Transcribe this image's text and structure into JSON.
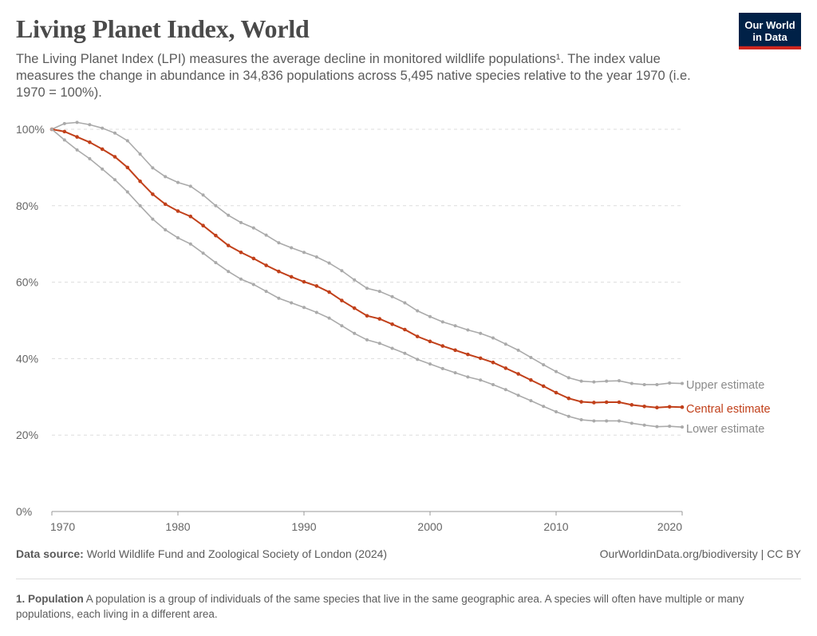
{
  "header": {
    "title": "Living Planet Index, World",
    "subtitle": "The Living Planet Index (LPI) measures the average decline in monitored wildlife populations¹. The index value measures the change in abundance in 34,836 populations across 5,495 native species relative to the year 1970 (i.e. 1970 = 100%).",
    "logo": "Our World in Data"
  },
  "footer": {
    "source_label": "Data source:",
    "source": "World Wildlife Fund and Zoological Society of London (2024)",
    "url": "OurWorldinData.org/biodiversity | CC BY",
    "note_label": "1. Population",
    "note": "A population is a group of individuals of the same species that live in the same geographic area. A species will often have multiple or many populations, each living in a different area."
  },
  "chart_data": {
    "type": "line",
    "x": [
      1970,
      1971,
      1972,
      1973,
      1974,
      1975,
      1976,
      1977,
      1978,
      1979,
      1980,
      1981,
      1982,
      1983,
      1984,
      1985,
      1986,
      1987,
      1988,
      1989,
      1990,
      1991,
      1992,
      1993,
      1994,
      1995,
      1996,
      1997,
      1998,
      1999,
      2000,
      2001,
      2002,
      2003,
      2004,
      2005,
      2006,
      2007,
      2008,
      2009,
      2010,
      2011,
      2012,
      2013,
      2014,
      2015,
      2016,
      2017,
      2018,
      2019,
      2020
    ],
    "series": [
      {
        "name": "Upper estimate",
        "color": "#aaaaaa",
        "values": [
          100,
          101.5,
          101.8,
          101.2,
          100.3,
          99,
          97,
          93.5,
          89.9,
          87.6,
          86.1,
          85.1,
          82.8,
          80,
          77.5,
          75.6,
          74.2,
          72.3,
          70.3,
          69,
          67.8,
          66.6,
          65,
          63,
          60.6,
          58.4,
          57.6,
          56.2,
          54.6,
          52.5,
          51,
          49.6,
          48.6,
          47.5,
          46.6,
          45.4,
          43.8,
          42.2,
          40.3,
          38.4,
          36.6,
          35,
          34.1,
          33.9,
          34.1,
          34.2,
          33.5,
          33.2,
          33.2,
          33.6,
          33.5
        ]
      },
      {
        "name": "Central estimate",
        "color": "#c1401a",
        "values": [
          100,
          99.4,
          98,
          96.6,
          94.8,
          92.8,
          90,
          86.4,
          83,
          80.4,
          78.6,
          77.2,
          74.8,
          72.2,
          69.6,
          67.8,
          66.2,
          64.4,
          62.8,
          61.4,
          60.1,
          59,
          57.4,
          55.2,
          53.2,
          51.2,
          50.4,
          49,
          47.6,
          45.8,
          44.5,
          43.3,
          42.2,
          41.1,
          40.1,
          39,
          37.5,
          36,
          34.4,
          32.8,
          31.1,
          29.6,
          28.7,
          28.5,
          28.6,
          28.6,
          27.9,
          27.5,
          27.2,
          27.4,
          27.3
        ]
      },
      {
        "name": "Lower estimate",
        "color": "#aaaaaa",
        "values": [
          100,
          97.2,
          94.6,
          92.3,
          89.6,
          86.8,
          83.6,
          80,
          76.5,
          73.7,
          71.6,
          70,
          67.6,
          65.1,
          62.8,
          60.8,
          59.4,
          57.6,
          55.8,
          54.6,
          53.4,
          52.1,
          50.6,
          48.6,
          46.6,
          44.9,
          44,
          42.7,
          41.4,
          39.8,
          38.6,
          37.4,
          36.3,
          35.2,
          34.4,
          33.2,
          31.9,
          30.4,
          29,
          27.5,
          26.1,
          24.9,
          24,
          23.7,
          23.7,
          23.7,
          23.1,
          22.6,
          22.2,
          22.3,
          22.1
        ]
      }
    ],
    "y_ticks": [
      "0%",
      "20%",
      "40%",
      "60%",
      "80%",
      "100%"
    ],
    "y_tick_values": [
      0,
      20,
      40,
      60,
      80,
      100
    ],
    "x_ticks": [
      "1970",
      "1980",
      "1990",
      "2000",
      "2010",
      "2020"
    ],
    "x_tick_values": [
      1970,
      1980,
      1990,
      2000,
      2010,
      2020
    ],
    "ylim": [
      0,
      100
    ],
    "xlim": [
      1970,
      2020
    ],
    "grid": "horizontal dashed",
    "legend": "right, inline labels"
  }
}
